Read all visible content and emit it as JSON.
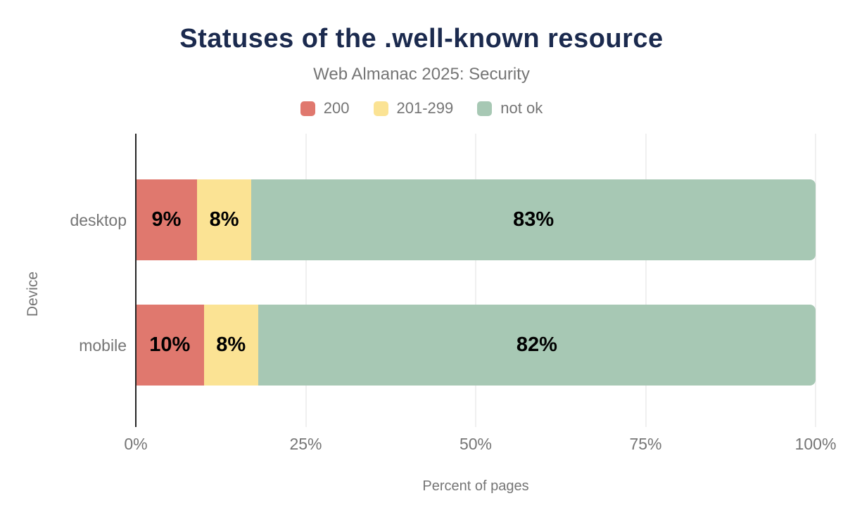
{
  "chart_data": {
    "type": "bar",
    "orientation": "horizontal",
    "stacked": true,
    "title": "Statuses of the .well-known resource",
    "subtitle": "Web Almanac 2025: Security",
    "xlabel": "Percent of pages",
    "ylabel": "Device",
    "categories": [
      "desktop",
      "mobile"
    ],
    "series": [
      {
        "name": "200",
        "color": "#e0786e",
        "values": [
          9,
          10
        ]
      },
      {
        "name": "201-299",
        "color": "#fbe394",
        "values": [
          8,
          8
        ]
      },
      {
        "name": "not ok",
        "color": "#a7c8b4",
        "values": [
          83,
          82
        ]
      }
    ],
    "data_label_unit": "%",
    "xlim": [
      0,
      100
    ],
    "xticks": [
      "0%",
      "25%",
      "50%",
      "75%",
      "100%"
    ],
    "legend_position": "top",
    "grid": "vertical-light"
  },
  "colors": {
    "title": "#1b2a4e",
    "muted_text": "#757575",
    "axis_line": "#262626",
    "gridline": "#f0f0f0",
    "data_label": "#000000",
    "background": "#ffffff"
  }
}
